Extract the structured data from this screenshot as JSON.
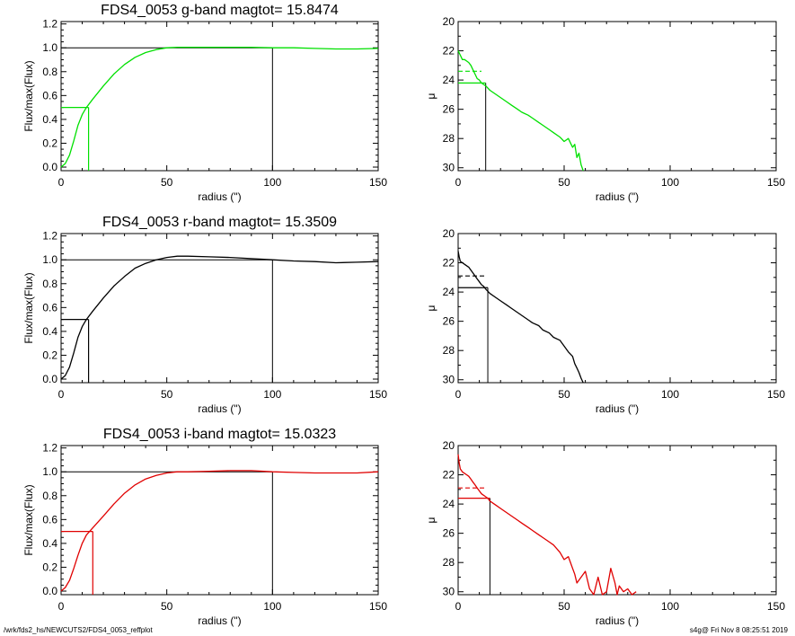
{
  "footer": {
    "left": "/wrk/fds2_hs/NEWCUTS2/FDS4_0053_reffplot",
    "right": "s4g@  Fri Nov  8 08:25:51 2019"
  },
  "chart_data": [
    {
      "type": "line",
      "panel": "growth-curve",
      "band": "g",
      "color": "#00e000",
      "title": "FDS4_0053 g-band  magtot=     15.8474",
      "xlabel": "radius (\")",
      "ylabel": "Flux/max(Flux)",
      "xlim": [
        0,
        150
      ],
      "ylim": [
        -0.03,
        1.22
      ],
      "xticks": [
        0,
        50,
        100,
        150
      ],
      "yticks": [
        0.0,
        0.2,
        0.4,
        0.6,
        0.8,
        1.0,
        1.2
      ],
      "ytick_labels": [
        "0.0",
        "0.2",
        "0.4",
        "0.6",
        "0.8",
        "1.0",
        "1.2"
      ],
      "series": [
        {
          "x": [
            0,
            2,
            4,
            6,
            8,
            10,
            12,
            15,
            20,
            25,
            30,
            35,
            40,
            45,
            50,
            55,
            60,
            70,
            80,
            90,
            100,
            110,
            120,
            130,
            140,
            150
          ],
          "y": [
            0.0,
            0.03,
            0.1,
            0.22,
            0.35,
            0.44,
            0.5,
            0.57,
            0.68,
            0.78,
            0.86,
            0.92,
            0.96,
            0.985,
            1.0,
            1.005,
            1.005,
            1.005,
            1.005,
            1.005,
            1.0,
            1.0,
            0.995,
            0.99,
            0.99,
            0.995
          ]
        }
      ],
      "reference": {
        "half_radius": 13,
        "half_value": 0.5,
        "total_radius": 100,
        "total_value": 1.0
      }
    },
    {
      "type": "line",
      "panel": "surface-brightness",
      "band": "g",
      "color": "#00e000",
      "xlabel": "radius (\")",
      "ylabel": "μ",
      "xlim": [
        0,
        150
      ],
      "ylim": [
        30.2,
        20
      ],
      "xticks": [
        0,
        50,
        100,
        150
      ],
      "yticks": [
        20,
        22,
        24,
        26,
        28,
        30
      ],
      "series": [
        {
          "x": [
            0,
            1,
            2,
            3,
            4,
            5,
            6,
            7,
            8,
            9,
            10,
            11,
            12,
            13,
            15,
            18,
            20,
            23,
            25,
            28,
            30,
            33,
            35,
            38,
            40,
            43,
            45,
            48,
            50,
            52,
            54,
            55,
            56,
            57,
            58,
            59
          ],
          "y": [
            22.0,
            22.3,
            22.6,
            22.6,
            22.7,
            22.8,
            23.0,
            23.3,
            23.6,
            23.9,
            24.0,
            24.2,
            24.3,
            24.4,
            24.7,
            25.0,
            25.2,
            25.5,
            25.7,
            26.0,
            26.2,
            26.4,
            26.6,
            26.9,
            27.1,
            27.4,
            27.6,
            27.9,
            28.2,
            28.0,
            28.6,
            28.4,
            29.3,
            29.0,
            29.8,
            30.2
          ]
        }
      ],
      "reference": {
        "r_eff": 13,
        "mu_eff": 24.2,
        "mean_mu": 23.4,
        "mean_radius": 11
      }
    },
    {
      "type": "line",
      "panel": "growth-curve",
      "band": "r",
      "color": "#000000",
      "title": "FDS4_0053 r-band  magtot=     15.3509",
      "xlabel": "radius (\")",
      "ylabel": "Flux/max(Flux)",
      "xlim": [
        0,
        150
      ],
      "ylim": [
        -0.03,
        1.22
      ],
      "xticks": [
        0,
        50,
        100,
        150
      ],
      "yticks": [
        0.0,
        0.2,
        0.4,
        0.6,
        0.8,
        1.0,
        1.2
      ],
      "ytick_labels": [
        "0.0",
        "0.2",
        "0.4",
        "0.6",
        "0.8",
        "1.0",
        "1.2"
      ],
      "series": [
        {
          "x": [
            0,
            2,
            4,
            6,
            8,
            10,
            12,
            15,
            20,
            25,
            30,
            35,
            40,
            45,
            50,
            55,
            60,
            70,
            80,
            90,
            100,
            110,
            120,
            130,
            140,
            150
          ],
          "y": [
            0.0,
            0.03,
            0.1,
            0.22,
            0.35,
            0.44,
            0.5,
            0.57,
            0.68,
            0.78,
            0.86,
            0.93,
            0.97,
            1.0,
            1.02,
            1.03,
            1.03,
            1.025,
            1.02,
            1.01,
            1.0,
            0.99,
            0.985,
            0.975,
            0.98,
            0.985
          ]
        }
      ],
      "reference": {
        "half_radius": 13,
        "half_value": 0.5,
        "total_radius": 100,
        "total_value": 1.0
      }
    },
    {
      "type": "line",
      "panel": "surface-brightness",
      "band": "r",
      "color": "#000000",
      "xlabel": "radius (\")",
      "ylabel": "μ",
      "xlim": [
        0,
        150
      ],
      "ylim": [
        30.2,
        20
      ],
      "xticks": [
        0,
        50,
        100,
        150
      ],
      "yticks": [
        20,
        22,
        24,
        26,
        28,
        30
      ],
      "series": [
        {
          "x": [
            0,
            0.5,
            1,
            2,
            3,
            4,
            5,
            6,
            7,
            8,
            9,
            10,
            11,
            12,
            13,
            15,
            18,
            20,
            23,
            25,
            28,
            30,
            33,
            35,
            38,
            40,
            43,
            45,
            48,
            50,
            52,
            54,
            55,
            56,
            57,
            58,
            59
          ],
          "y": [
            21.2,
            21.6,
            21.9,
            22.0,
            22.1,
            22.2,
            22.3,
            22.5,
            22.7,
            22.9,
            23.1,
            23.3,
            23.5,
            23.6,
            23.8,
            24.1,
            24.4,
            24.6,
            24.9,
            25.1,
            25.4,
            25.6,
            25.9,
            26.1,
            26.3,
            26.6,
            26.8,
            27.1,
            27.3,
            27.7,
            28.1,
            28.4,
            28.9,
            29.2,
            29.5,
            29.9,
            30.2
          ]
        }
      ],
      "reference": {
        "r_eff": 14,
        "mu_eff": 23.7,
        "mean_mu": 22.9,
        "mean_radius": 13
      }
    },
    {
      "type": "line",
      "panel": "growth-curve",
      "band": "i",
      "color": "#e00000",
      "title": "FDS4_0053 i-band  magtot=     15.0323",
      "xlabel": "radius (\")",
      "ylabel": "Flux/max(Flux)",
      "xlim": [
        0,
        150
      ],
      "ylim": [
        -0.03,
        1.22
      ],
      "xticks": [
        0,
        50,
        100,
        150
      ],
      "yticks": [
        0.0,
        0.2,
        0.4,
        0.6,
        0.8,
        1.0,
        1.2
      ],
      "ytick_labels": [
        "0.0",
        "0.2",
        "0.4",
        "0.6",
        "0.8",
        "1.0",
        "1.2"
      ],
      "series": [
        {
          "x": [
            0,
            2,
            4,
            6,
            8,
            10,
            12,
            15,
            20,
            25,
            30,
            35,
            40,
            45,
            50,
            55,
            60,
            70,
            80,
            90,
            100,
            110,
            120,
            130,
            140,
            150
          ],
          "y": [
            0.0,
            0.03,
            0.09,
            0.19,
            0.3,
            0.4,
            0.47,
            0.53,
            0.63,
            0.73,
            0.82,
            0.89,
            0.94,
            0.97,
            0.99,
            1.0,
            1.0,
            1.005,
            1.01,
            1.01,
            1.0,
            0.995,
            0.99,
            0.99,
            0.99,
            1.0
          ]
        }
      ],
      "reference": {
        "half_radius": 15,
        "half_value": 0.5,
        "total_radius": 100,
        "total_value": 1.0
      }
    },
    {
      "type": "line",
      "panel": "surface-brightness",
      "band": "i",
      "color": "#e00000",
      "xlabel": "radius (\")",
      "ylabel": "μ",
      "xlim": [
        0,
        150
      ],
      "ylim": [
        30.2,
        20
      ],
      "xticks": [
        0,
        50,
        100,
        150
      ],
      "yticks": [
        20,
        22,
        24,
        26,
        28,
        30
      ],
      "series": [
        {
          "x": [
            0,
            0.5,
            1,
            2,
            3,
            4,
            5,
            6,
            7,
            8,
            9,
            10,
            11,
            12,
            13,
            14,
            15,
            18,
            20,
            23,
            25,
            28,
            30,
            33,
            35,
            38,
            40,
            43,
            45,
            48,
            50,
            52,
            54,
            55,
            56,
            58,
            60,
            62,
            64,
            65,
            66,
            68,
            70,
            72,
            74,
            75,
            76,
            78,
            80,
            82,
            84
          ],
          "y": [
            20.6,
            21.2,
            21.6,
            21.8,
            21.9,
            22.0,
            22.1,
            22.3,
            22.5,
            22.7,
            22.9,
            23.1,
            23.3,
            23.4,
            23.5,
            23.6,
            23.8,
            24.1,
            24.3,
            24.6,
            24.8,
            25.1,
            25.3,
            25.6,
            25.8,
            26.1,
            26.3,
            26.6,
            26.8,
            27.3,
            27.8,
            27.6,
            28.4,
            28.8,
            29.4,
            29.0,
            28.6,
            29.8,
            30.2,
            29.6,
            29.0,
            30.2,
            30.0,
            28.4,
            29.4,
            30.2,
            29.6,
            30.0,
            29.8,
            30.2,
            30.0
          ]
        }
      ],
      "reference": {
        "r_eff": 15,
        "mu_eff": 23.6,
        "mean_mu": 22.9,
        "mean_radius": 13
      }
    }
  ]
}
